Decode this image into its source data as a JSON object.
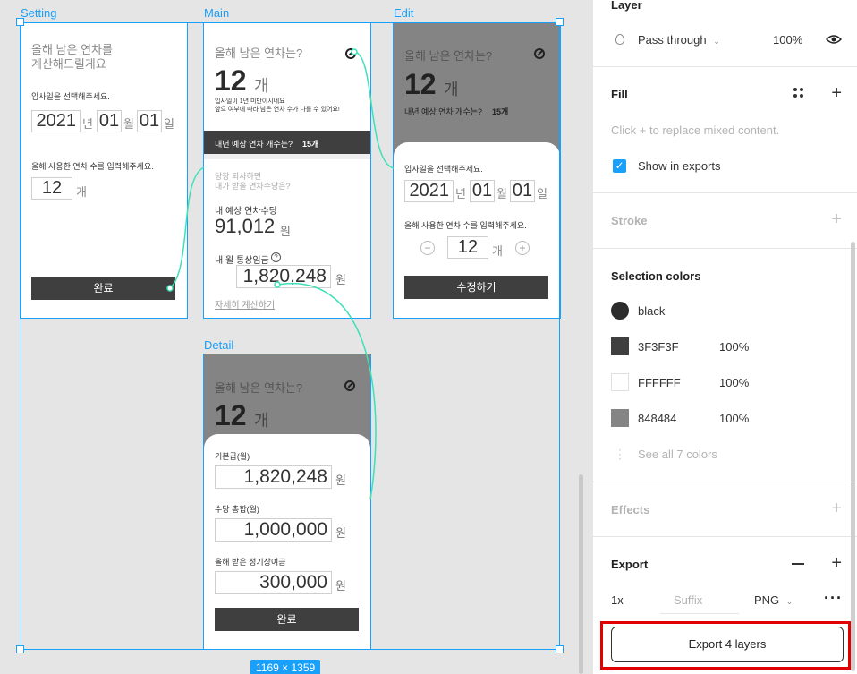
{
  "canvas": {
    "frames": {
      "setting": {
        "label": "Setting",
        "title": "올해 남은 연차를\n계산해드릴게요",
        "join_prompt": "입사일을 선택해주세요.",
        "year": "2021",
        "year_unit": "년",
        "month": "01",
        "month_unit": "월",
        "day": "01",
        "day_unit": "일",
        "used_prompt": "올해 사용한 연차 수를 입력해주세요.",
        "used_value": "12",
        "used_unit": "개",
        "done_button": "완료"
      },
      "main": {
        "label": "Main",
        "title": "올해 남은 연차는?",
        "count": "12",
        "count_unit": "개",
        "note": "입사일이 1년 미만이시네요\n앞으 여부에 따라 남은 연차 수가 다를 수 있어요!",
        "next_year_label": "내년 예상 연차 개수는?",
        "next_year_value": "15개",
        "quit_prompt": "당장 퇴사하면\n내가 받을 연차수당은?",
        "allowance_label": "내 예상 연차수당",
        "allowance_value": "91,012",
        "allowance_unit": "원",
        "wage_label": "내 월 통상임금",
        "help_glyph": "?",
        "wage_value": "1,820,248",
        "wage_unit": "원",
        "detail_link": "자세히 계산하기"
      },
      "edit": {
        "label": "Edit",
        "title": "올해 남은 연차는?",
        "count": "12",
        "count_unit": "개",
        "next_year_label": "내년 예상 연차 개수는?",
        "next_year_value": "15개",
        "join_prompt": "입사일을 선택해주세요.",
        "year": "2021",
        "year_unit": "년",
        "month": "01",
        "month_unit": "월",
        "day": "01",
        "day_unit": "일",
        "used_prompt": "올해 사용한 연차 수를 입력해주세요.",
        "minus": "−",
        "used_value": "12",
        "used_unit": "개",
        "plus": "+",
        "edit_button": "수정하기"
      },
      "detail": {
        "label": "Detail",
        "title": "올해 남은 연차는?",
        "count": "12",
        "count_unit": "개",
        "base_label": "기본급(월)",
        "base_value": "1,820,248",
        "base_unit": "원",
        "allowance_label": "수당 총합(월)",
        "allowance_value": "1,000,000",
        "allowance_unit": "원",
        "bonus_label": "올해 받은 정기상여금",
        "bonus_value": "300,000",
        "bonus_unit": "원",
        "done_button": "완료"
      }
    },
    "selection_size": "1169 × 1359",
    "accent_color": "#18a0fb",
    "connector_color": "#3ee0b8"
  },
  "panel": {
    "layer": {
      "title": "Layer",
      "blend_mode": "Pass through",
      "opacity": "100%"
    },
    "fill": {
      "title": "Fill",
      "mixed_hint": "Click + to replace mixed content.",
      "show_in_exports": "Show in exports"
    },
    "stroke": {
      "title": "Stroke"
    },
    "selection_colors": {
      "title": "Selection colors",
      "colors": [
        {
          "name": "black",
          "hex": "#2c2c2c",
          "opacity": ""
        },
        {
          "name": "3F3F3F",
          "hex": "#3F3F3F",
          "opacity": "100%"
        },
        {
          "name": "FFFFFF",
          "hex": "#FFFFFF",
          "opacity": "100%"
        },
        {
          "name": "848484",
          "hex": "#848484",
          "opacity": "100%"
        }
      ],
      "see_all": "See all 7 colors"
    },
    "effects": {
      "title": "Effects"
    },
    "export": {
      "title": "Export",
      "scale": "1x",
      "suffix_placeholder": "Suffix",
      "format": "PNG",
      "export_button": "Export 4 layers"
    }
  }
}
